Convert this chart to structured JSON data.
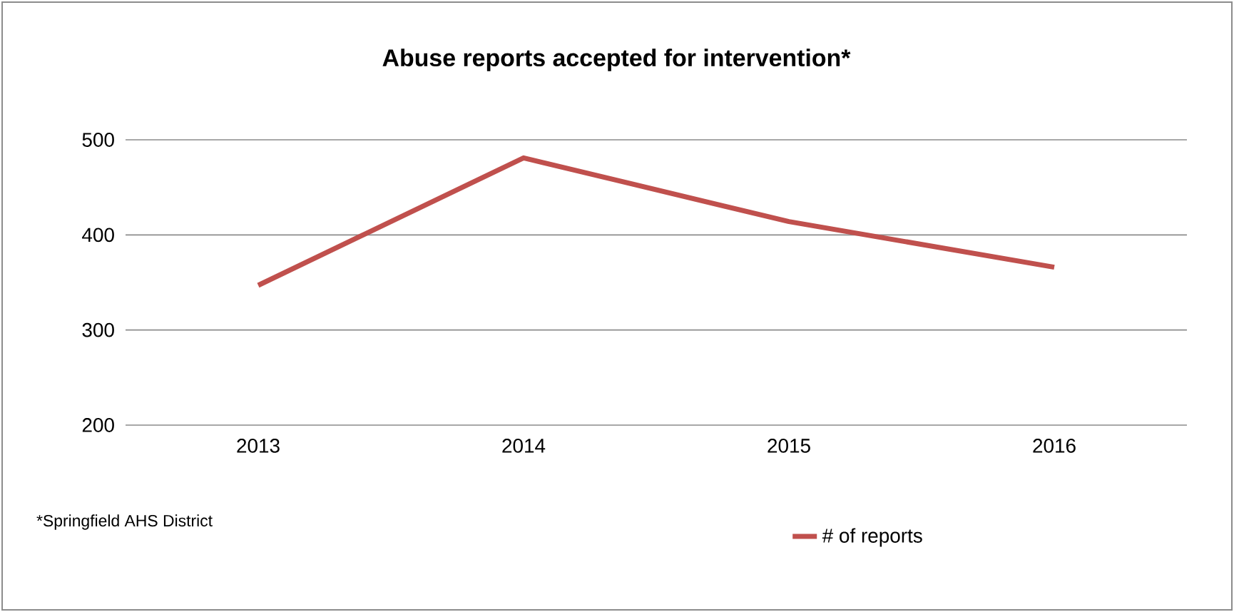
{
  "chart_data": {
    "type": "line",
    "title": "Abuse reports accepted for intervention*",
    "categories": [
      "2013",
      "2014",
      "2015",
      "2016"
    ],
    "series": [
      {
        "name": "# of reports",
        "color": "#c0504d",
        "values": [
          347,
          481,
          414,
          366
        ]
      }
    ],
    "ylim": [
      200,
      500
    ],
    "yticks": [
      200,
      300,
      400,
      500
    ],
    "grid": "y",
    "legend": "bottom",
    "marker": "none",
    "line_style": "solid",
    "annotations": [
      "*Springfield AHS District"
    ]
  }
}
